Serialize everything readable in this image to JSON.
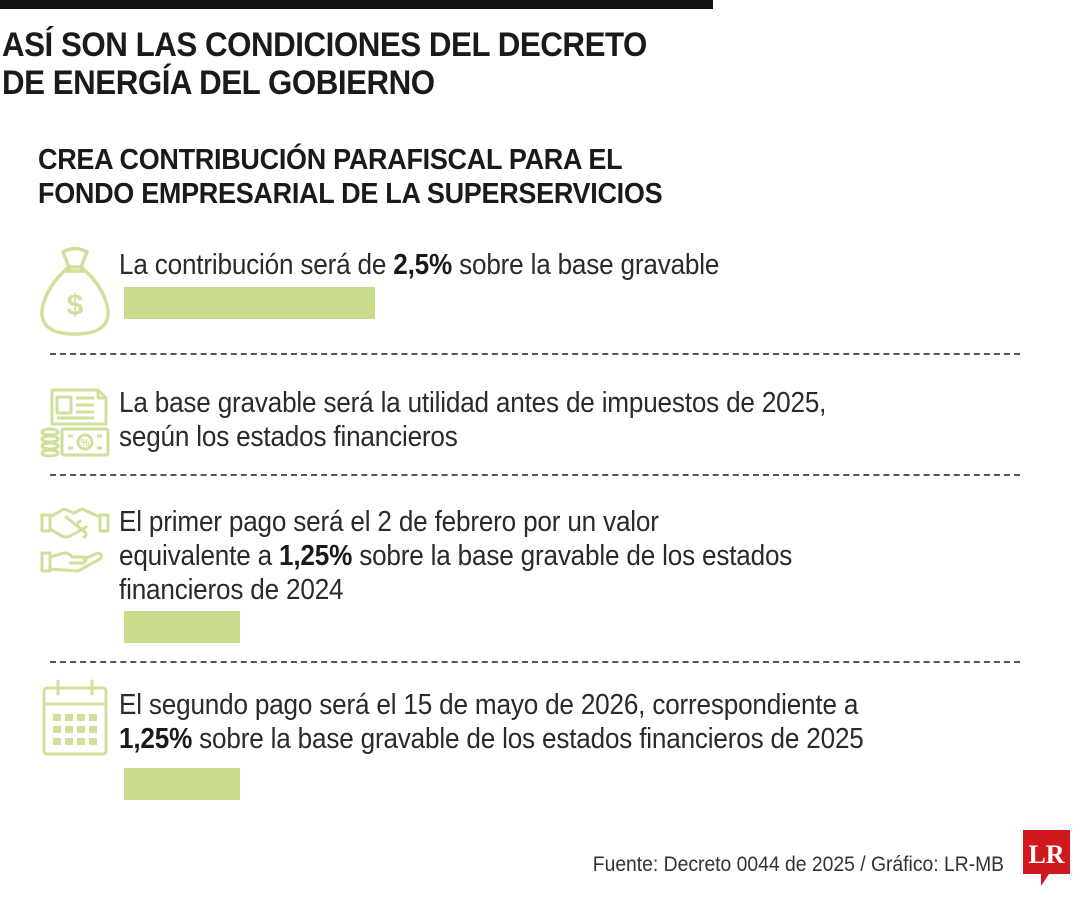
{
  "header": {
    "title_line1": "ASÍ SON LAS CONDICIONES DEL DECRETO",
    "title_line2": "DE ENERGÍA DEL GOBIERNO",
    "subtitle_line1": "CREA CONTRIBUCIÓN PARAFISCAL PARA EL",
    "subtitle_line2": "FONDO EMPRESARIAL DE LA SUPERSERVICIOS"
  },
  "items": [
    {
      "icon": "money-bag-icon",
      "line1_pre": "La contribución será de ",
      "line1_bold": "2,5%",
      "line1_post": " sobre la base gravable",
      "bar_value_percent": 2.5
    },
    {
      "icon": "financial-statements-icon",
      "line1": "La base gravable será la utilidad antes de impuestos de 2025,",
      "line2": "según los estados financieros"
    },
    {
      "icon": "handshake-payment-icon",
      "line1": "El primer pago será el 2 de febrero por un valor",
      "line2_pre": "equivalente a ",
      "line2_bold": "1,25%",
      "line2_post": " sobre la base gravable de los estados",
      "line3": "financieros de 2024",
      "bar_value_percent": 1.25
    },
    {
      "icon": "calendar-icon",
      "line1": "El segundo pago será el 15 de mayo de 2026, correspondiente a",
      "line2_bold": "1,25%",
      "line2_post": " sobre la base gravable de los estados financieros de 2025",
      "bar_value_percent": 1.25
    }
  ],
  "footer": {
    "source": "Fuente: Decreto 0044 de 2025 / Gráfico: LR-MB",
    "logo_text": "LR"
  },
  "colors": {
    "accent_green": "#c8dc8c",
    "icon_green": "#cfe09a",
    "logo_red": "#d0191f",
    "text": "#222222"
  }
}
